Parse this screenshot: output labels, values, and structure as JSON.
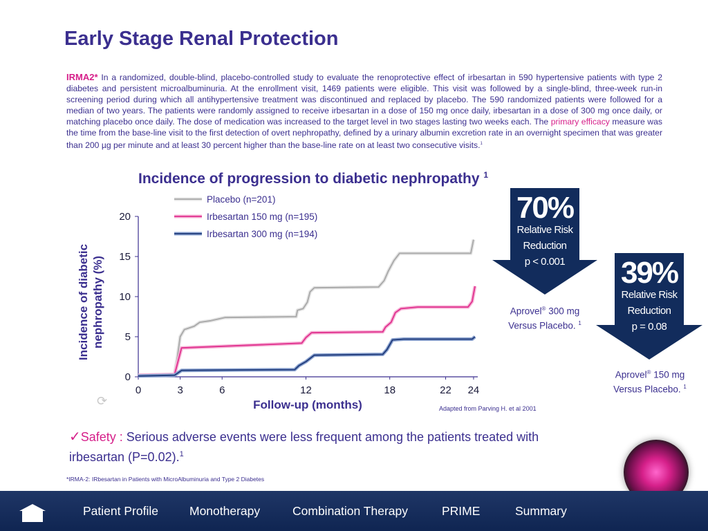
{
  "page_title": "Early Stage Renal Protection",
  "intro": {
    "lead": "IRMA2*",
    "text_before": " In a randomized, double-blind, placebo-controlled study  to evaluate the renoprotective effect of irbesartan in 590 hypertensive patients with type 2 diabetes and persistent microalbuminuria. At the enrollment visit, 1469 patients were eligible. This visit was followed by a single-blind, three-week run-in screening period during which all antihypertensive treatment was discontinued and replaced by placebo. The 590 randomized patients were followed for a median of two years. The patients were randomly assigned to receive irbesartan in a dose of 150 mg once daily, irbesartan in a dose of 300 mg once daily, or matching placebo once daily. The dose of medication was increased to the target level in two stages lasting two weeks each. The ",
    "highlight": "primary efficacy",
    "text_after": " measure was the time from the base-line visit to the first detection of overt nephropathy, defined by a urinary albumin excretion rate in an overnight specimen that was greater than 200 µg per minute and at least 30 percent higher than the base-line rate on at least two consecutive visits.",
    "ref": "1"
  },
  "chart_data": {
    "type": "line",
    "title": "Incidence of progression to diabetic nephropathy",
    "title_ref": "1",
    "xlabel": "Follow-up (months)",
    "ylabel_line1": "Incidence of diabetic",
    "ylabel_line2": "nephropathy (%)",
    "xlim": [
      0,
      24.3
    ],
    "ylim": [
      0,
      20
    ],
    "xticks": [
      0,
      3,
      6,
      12,
      18,
      22,
      24
    ],
    "yticks": [
      0,
      5,
      10,
      15,
      20
    ],
    "grid": false,
    "legend_position": "top-left",
    "series": [
      {
        "name": "Placebo (n=201)",
        "color": "#a8a8a8",
        "shadow": "#e4e4e4",
        "points": [
          [
            0,
            0.2
          ],
          [
            2.6,
            0.3
          ],
          [
            2.8,
            2.5
          ],
          [
            3.0,
            5.0
          ],
          [
            3.3,
            5.9
          ],
          [
            4.0,
            6.3
          ],
          [
            4.4,
            6.8
          ],
          [
            5.2,
            7.0
          ],
          [
            6.2,
            7.4
          ],
          [
            11.3,
            7.5
          ],
          [
            11.4,
            8.3
          ],
          [
            11.8,
            8.5
          ],
          [
            12.1,
            9.3
          ],
          [
            12.3,
            10.6
          ],
          [
            12.6,
            11.1
          ],
          [
            17.2,
            11.2
          ],
          [
            17.6,
            12.0
          ],
          [
            17.9,
            13.2
          ],
          [
            18.3,
            14.5
          ],
          [
            18.7,
            15.4
          ],
          [
            23.8,
            15.4
          ],
          [
            24.0,
            17.1
          ]
        ]
      },
      {
        "name": "Irbesartan 150 mg (n=195)",
        "color": "#e0308e",
        "shadow": "#f6b3d6",
        "points": [
          [
            0,
            0.2
          ],
          [
            2.6,
            0.3
          ],
          [
            2.9,
            2.3
          ],
          [
            3.1,
            3.6
          ],
          [
            11.7,
            4.2
          ],
          [
            12.0,
            4.9
          ],
          [
            12.4,
            5.5
          ],
          [
            17.5,
            5.6
          ],
          [
            17.7,
            6.2
          ],
          [
            18.1,
            6.8
          ],
          [
            18.4,
            8.0
          ],
          [
            18.8,
            8.5
          ],
          [
            20.0,
            8.7
          ],
          [
            23.6,
            8.7
          ],
          [
            23.9,
            9.4
          ],
          [
            24.1,
            11.3
          ]
        ]
      },
      {
        "name": "Irbesartan 300 mg (n=194)",
        "color": "#1f3a7a",
        "shadow": "#8aa2cf",
        "points": [
          [
            0,
            0.1
          ],
          [
            2.6,
            0.2
          ],
          [
            3.1,
            0.8
          ],
          [
            11.2,
            0.9
          ],
          [
            11.5,
            1.4
          ],
          [
            12.0,
            1.9
          ],
          [
            12.6,
            2.7
          ],
          [
            17.5,
            2.8
          ],
          [
            17.8,
            3.4
          ],
          [
            18.2,
            4.6
          ],
          [
            19.0,
            4.7
          ],
          [
            23.9,
            4.7
          ],
          [
            24.1,
            5.0
          ]
        ]
      }
    ]
  },
  "source_note": "Adapted from Parving H. et al 2001",
  "result_300": {
    "percent": "70%",
    "line1": "Relative Risk",
    "line2": "Reduction",
    "p_value": "p < 0.001",
    "caption_drug": "Aprovel",
    "caption_mark": "®",
    "caption_dose": " 300 mg",
    "caption_line2": "Versus Placebo. ",
    "caption_ref": "1",
    "color": "#122c5c"
  },
  "result_150": {
    "percent": "39%",
    "line1": "Relative Risk",
    "line2": "Reduction",
    "p_value": "p = 0.08",
    "caption_drug": "Aprovel",
    "caption_mark": "®",
    "caption_dose": " 150 mg",
    "caption_line2": "Versus Placebo. ",
    "caption_ref": "1",
    "color": "#122c5c"
  },
  "safety": {
    "check": "✓",
    "label": "Safety :",
    "text": " Serious adverse events were less frequent among the patients treated with irbesartan (P=0.02).",
    "ref": "1"
  },
  "footnote": "*IRMA-2: IRbesartan in Patients with MicroAlbuminuria and Type 2 Diabetes",
  "nav": {
    "items": [
      {
        "label": "Patient Profile"
      },
      {
        "label": "Monotherapy"
      },
      {
        "label": "Combination Therapy"
      },
      {
        "label": "PRIME"
      },
      {
        "label": "Summary"
      }
    ]
  },
  "colors": {
    "accent_purple": "#3b2f8f",
    "accent_pink": "#d6208a",
    "nav_bg": "#152d5e"
  }
}
